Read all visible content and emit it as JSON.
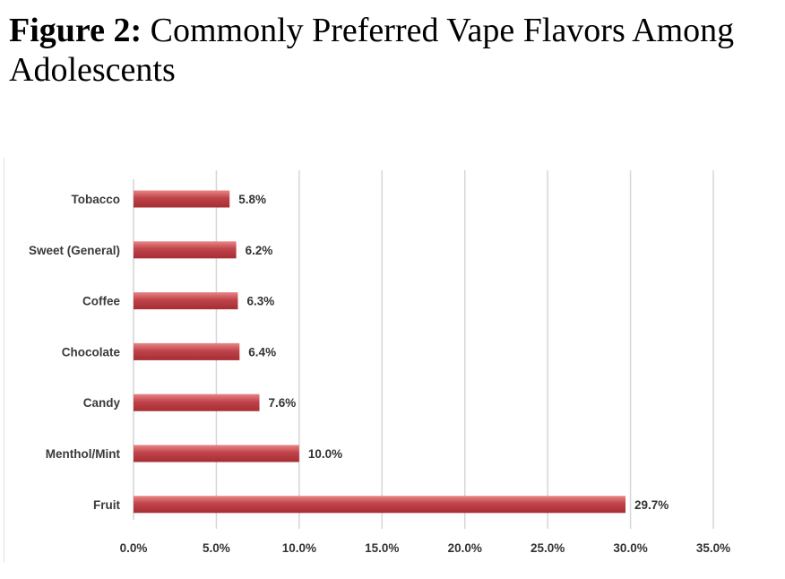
{
  "figure": {
    "label": "Figure 2:",
    "title": "Commonly Preferred Vape Flavors Among Adolescents"
  },
  "colors": {
    "bar": "#b8383c",
    "bar_light": "#e27a7a",
    "grid": "#d6d6d6"
  },
  "chart_data": {
    "type": "bar",
    "orientation": "horizontal",
    "title": "Commonly Preferred Vape Flavors Among Adolescents",
    "categories": [
      "Tobacco",
      "Sweet (General)",
      "Coffee",
      "Chocolate",
      "Candy",
      "Menthol/Mint",
      "Fruit"
    ],
    "values": [
      5.8,
      6.2,
      6.3,
      6.4,
      7.6,
      10.0,
      29.7
    ],
    "data_labels": [
      "5.8%",
      "6.2%",
      "6.3%",
      "6.4%",
      "7.6%",
      "10.0%",
      "29.7%"
    ],
    "x_ticks": [
      0,
      5,
      10,
      15,
      20,
      25,
      30,
      35
    ],
    "x_tick_labels": [
      "0.0%",
      "5.0%",
      "10.0%",
      "15.0%",
      "20.0%",
      "25.0%",
      "30.0%",
      "35.0%"
    ],
    "xlim": [
      0,
      35
    ],
    "xlabel": "",
    "ylabel": "",
    "grid": true,
    "legend": "none"
  }
}
